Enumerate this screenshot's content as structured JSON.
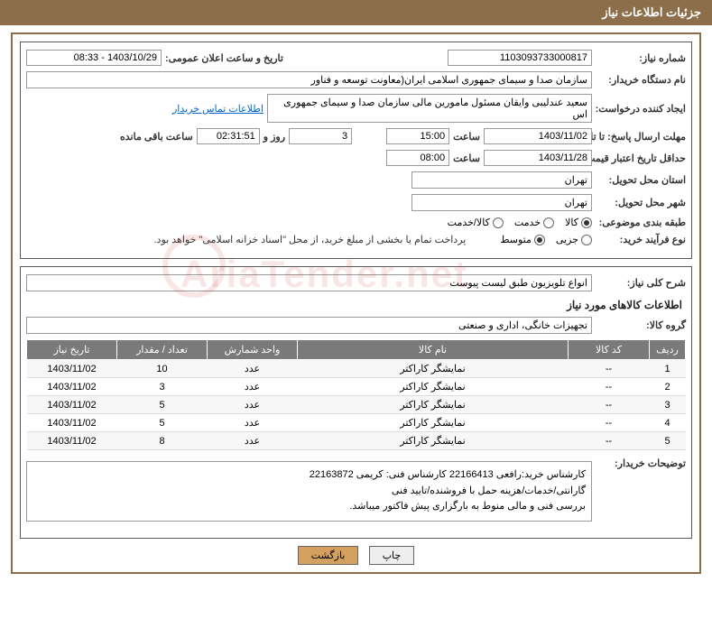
{
  "header": {
    "title": "جزئیات اطلاعات نیاز"
  },
  "fields": {
    "need_no_label": "شماره نیاز:",
    "need_no": "1103093733000817",
    "announce_label": "تاریخ و ساعت اعلان عمومی:",
    "announce": "1403/10/29 - 08:33",
    "buyer_org_label": "نام دستگاه خریدار:",
    "buyer_org": "سازمان صدا و سیمای جمهوری اسلامی ایران(معاونت توسعه و فناور",
    "requester_label": "ایجاد کننده درخواست:",
    "requester": "سعید عندلیبی وایقان مسئول مامورین مالی  سازمان صدا و سیمای جمهوری اس",
    "contact_link": "اطلاعات تماس خریدار",
    "reply_deadline_label": "مهلت ارسال پاسخ: تا تاریخ:",
    "reply_date": "1403/11/02",
    "time_label": "ساعت",
    "reply_time": "15:00",
    "days": "3",
    "days_and": "روز و",
    "countdown": "02:31:51",
    "remaining": "ساعت باقی مانده",
    "validity_label": "حداقل تاریخ اعتبار قیمت: تا تاریخ:",
    "validity_date": "1403/11/28",
    "validity_time": "08:00",
    "province_label": "استان محل تحویل:",
    "province": "تهران",
    "city_label": "شهر محل تحویل:",
    "city": "تهران",
    "category_label": "طبقه بندی موضوعی:",
    "cat_goods": "کالا",
    "cat_service": "خدمت",
    "cat_both": "کالا/خدمت",
    "process_label": "نوع فرآیند خرید:",
    "proc_small": "جزیی",
    "proc_medium": "متوسط",
    "treasury_note": "پرداخت تمام یا بخشی از مبلغ خرید، از محل \"اسناد خزانه اسلامی\" خواهد بود."
  },
  "desc": {
    "title_label": "شرح کلی نیاز:",
    "title": "انواع تلویزیون طبق لیست پیوست",
    "section_title": "اطلاعات کالاهای مورد نیاز",
    "group_label": "گروه کالا:",
    "group": "تجهیزات خانگی، اداری و صنعتی"
  },
  "table": {
    "headers": {
      "row": "ردیف",
      "code": "کد کالا",
      "name": "نام کالا",
      "unit": "واحد شمارش",
      "qty": "تعداد / مقدار",
      "date": "تاریخ نیاز"
    },
    "rows": [
      {
        "n": "1",
        "code": "--",
        "name": "نمایشگر کاراکتر",
        "unit": "عدد",
        "qty": "10",
        "date": "1403/11/02"
      },
      {
        "n": "2",
        "code": "--",
        "name": "نمایشگر کاراکتر",
        "unit": "عدد",
        "qty": "3",
        "date": "1403/11/02"
      },
      {
        "n": "3",
        "code": "--",
        "name": "نمایشگر کاراکتر",
        "unit": "عدد",
        "qty": "5",
        "date": "1403/11/02"
      },
      {
        "n": "4",
        "code": "--",
        "name": "نمایشگر کاراکتر",
        "unit": "عدد",
        "qty": "5",
        "date": "1403/11/02"
      },
      {
        "n": "5",
        "code": "--",
        "name": "نمایشگر کاراکتر",
        "unit": "عدد",
        "qty": "8",
        "date": "1403/11/02"
      }
    ]
  },
  "buyer_notes": {
    "label": "توضیحات خریدار:",
    "line1": "کارشناس خرید:رافعی 22166413  کارشناس فنی: کریمی 22163872",
    "line2": "گارانتی/خدمات/هزینه حمل با فروشنده/تایید فنی",
    "line3": "بررسی فنی و مالی منوط به بارگزاری پیش فاکتور میباشد."
  },
  "buttons": {
    "print": "چاپ",
    "back": "بازگشت"
  },
  "watermark": "AriaTender.net"
}
